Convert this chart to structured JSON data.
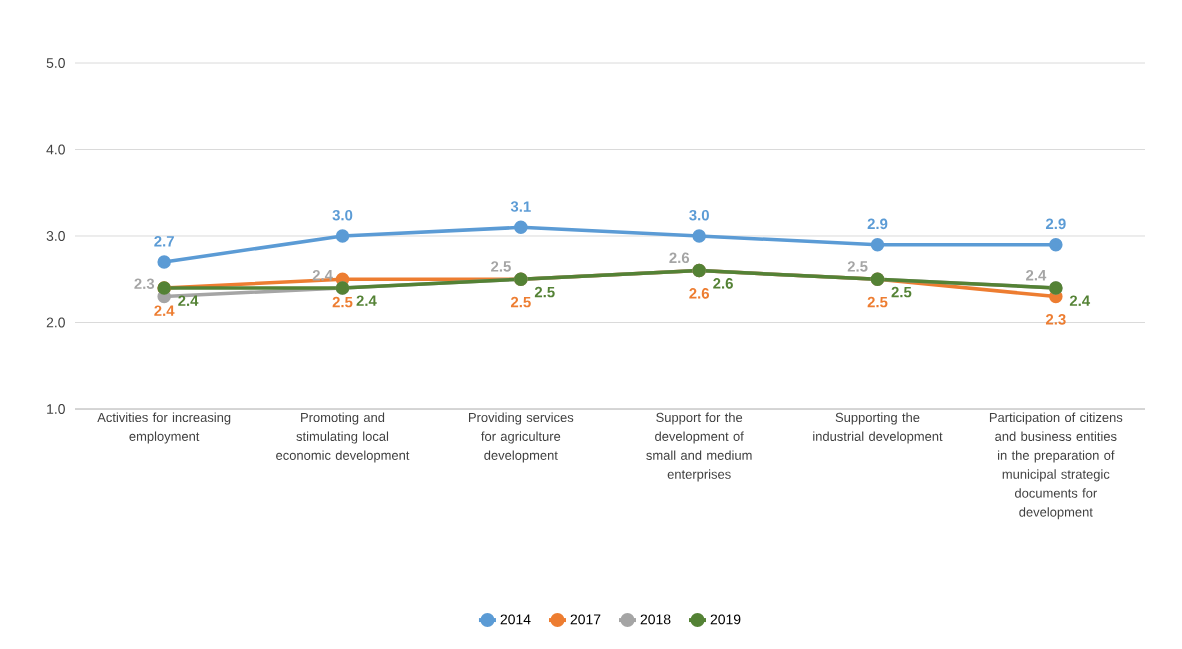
{
  "chart_data": {
    "type": "line",
    "categories": [
      "Activities for increasing employment",
      "Promoting and stimulating local economic development",
      "Providing services for agriculture development",
      "Support for the development of small and medium enterprises",
      "Supporting the industrial development",
      "Participation of citizens and business entities in the preparation of municipal strategic documents for development"
    ],
    "series": [
      {
        "name": "2014",
        "color": "#5b9bd5",
        "values": [
          2.7,
          3.0,
          3.1,
          3.0,
          2.9,
          2.9
        ],
        "value_labels": [
          "2.7",
          "3.0",
          "3.1",
          "3.0",
          "2.9",
          "2.9"
        ]
      },
      {
        "name": "2017",
        "color": "#ed7d31",
        "values": [
          2.4,
          2.5,
          2.5,
          2.6,
          2.5,
          2.3
        ],
        "value_labels": [
          "2.4",
          "2.5",
          "2.5",
          "2.6",
          "2.5",
          "2.3"
        ]
      },
      {
        "name": "2018",
        "color": "#a5a5a5",
        "values": [
          2.3,
          2.4,
          2.5,
          2.6,
          2.5,
          2.4
        ],
        "value_labels": [
          "2.3",
          "2.4",
          "2.5",
          "2.6",
          "2.5",
          "2.4"
        ]
      },
      {
        "name": "2019",
        "color": "#548235",
        "values": [
          2.4,
          2.4,
          2.5,
          2.6,
          2.5,
          2.4
        ],
        "value_labels": [
          "2.4",
          "2.4",
          "2.5",
          "2.6",
          "2.5",
          "2.4"
        ]
      }
    ],
    "ylim": [
      1,
      5
    ],
    "yticks": [
      {
        "value": 1,
        "label": "1.0"
      },
      {
        "value": 2,
        "label": "2.0"
      },
      {
        "value": 3,
        "label": "3.0"
      },
      {
        "value": 4,
        "label": "4.0"
      },
      {
        "value": 5,
        "label": "5.0"
      }
    ],
    "grid": "y",
    "legend": "bottom",
    "marker": "circle",
    "line_style": "solid"
  }
}
